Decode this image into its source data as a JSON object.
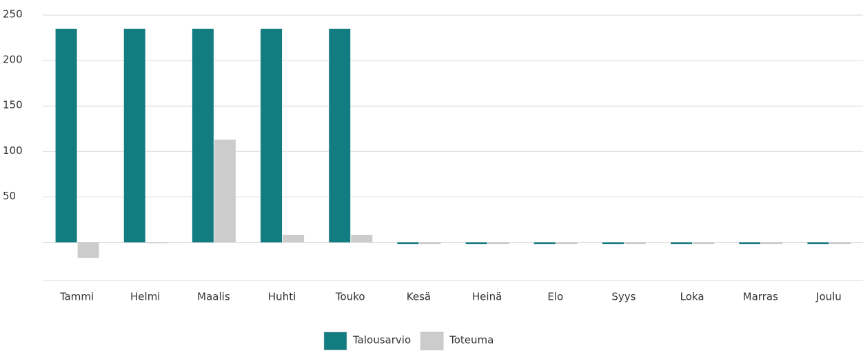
{
  "chart_data": {
    "type": "bar",
    "categories": [
      "Tammi",
      "Helmi",
      "Maalis",
      "Huhti",
      "Touko",
      "Kesä",
      "Heinä",
      "Elo",
      "Syys",
      "Loka",
      "Marras",
      "Joulu"
    ],
    "series": [
      {
        "name": "Talousarvio",
        "color": "#127c80",
        "values": [
          235,
          235,
          235,
          235,
          235,
          -2,
          -2,
          -2,
          -2,
          -2,
          -2,
          -2
        ]
      },
      {
        "name": "Toteuma",
        "color": "#cccccc",
        "values": [
          -17,
          -1,
          113,
          8,
          8,
          -2,
          -2,
          -2,
          -2,
          -2,
          -2,
          -2
        ]
      }
    ],
    "ylim": [
      -42,
      250
    ],
    "yticks": [
      50,
      100,
      150,
      200,
      250
    ],
    "grid": true,
    "legend": "bottom"
  }
}
